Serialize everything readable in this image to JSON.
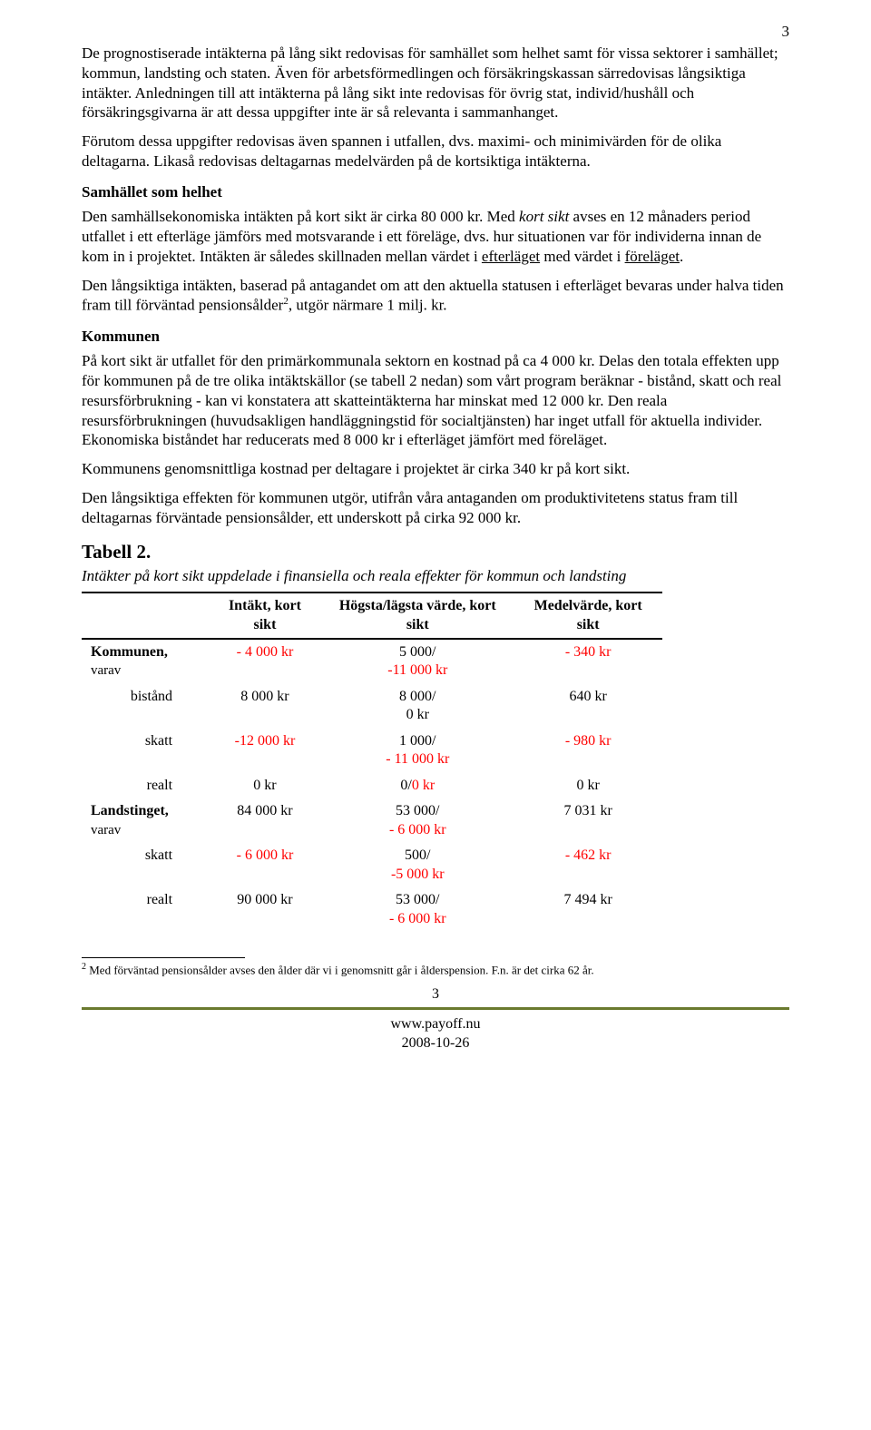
{
  "page": {
    "number_top": "3",
    "number_bottom": "3",
    "footer_url": "www.payoff.nu",
    "footer_date": "2008-10-26"
  },
  "paragraphs": {
    "p1a": "De prognostiserade intäkterna på lång sikt redovisas för samhället som helhet samt för vissa sektorer i samhället; kommun, landsting och staten. Även för arbetsförmedlingen och försäkringskassan särredovisas långsiktiga intäkter. Anledningen till att intäkterna på lång sikt inte redovisas för övrig stat, individ/hushåll och försäkringsgivarna är att dessa uppgifter inte är så relevanta i sammanhanget.",
    "p1b": "Förutom dessa uppgifter redovisas även spannen i utfallen, dvs. maximi- och minimivärden för de olika deltagarna. Likaså redovisas deltagarnas medelvärden på de kortsiktiga intäkterna.",
    "h1": "Samhället som helhet",
    "p2a_1": "Den samhällsekonomiska intäkten på kort sikt är cirka 80 000 kr. Med ",
    "p2a_italic": "kort sikt",
    "p2a_2": " avses en 12 månaders period utfallet i ett efterläge jämförs med motsvarande i ett föreläge, dvs. hur situationen var för individerna innan de kom in i projektet. Intäkten är således skillnaden mellan värdet i ",
    "p2a_u1": "efterläget",
    "p2a_3": " med värdet i ",
    "p2a_u2": "föreläget",
    "p2a_4": ".",
    "p2b_1": "Den långsiktiga intäkten, baserad på antagandet om att den aktuella statusen i efterläget bevaras under halva tiden fram till förväntad pensionsålder",
    "p2b_sup": "2",
    "p2b_2": ", utgör närmare 1 milj. kr.",
    "h2": "Kommunen",
    "p3a": "På kort sikt är utfallet för den primärkommunala sektorn en kostnad på ca 4 000 kr. Delas den totala effekten upp för kommunen på de tre olika intäktskällor (se tabell 2 nedan) som vårt program beräknar - bistånd, skatt och real resursförbrukning - kan vi konstatera att skatteintäkterna har minskat med 12 000 kr. Den reala resursförbrukningen (huvudsakligen handläggningstid för socialtjänsten) har inget utfall för aktuella individer. Ekonomiska biståndet har reducerats med 8 000 kr i efterläget jämfört med föreläget.",
    "p3b": "Kommunens genomsnittliga kostnad per deltagare i projektet är cirka 340 kr på kort sikt.",
    "p3c": "Den långsiktiga effekten för kommunen utgör, utifrån våra antaganden om produktivitetens status fram till deltagarnas förväntade pensionsålder, ett underskott på cirka 92 000 kr."
  },
  "table": {
    "title": "Tabell 2.",
    "caption": "Intäkter på kort sikt uppdelade i finansiella och reala effekter för kommun och landsting",
    "headers": {
      "c1": "",
      "c2": "Intäkt, kort sikt",
      "c3": "Högsta/lägsta värde, kort sikt",
      "c4": "Medelvärde, kort sikt"
    },
    "rows": [
      {
        "label": "Kommunen,",
        "varav": "varav",
        "c2": "- 4 000 kr",
        "c2neg": true,
        "c3a": "5 000/",
        "c3b": "-11 000 kr",
        "c3bneg": true,
        "c4": "- 340 kr",
        "c4neg": true,
        "main": true
      },
      {
        "label": "bistånd",
        "c2": "8 000 kr",
        "c2neg": false,
        "c3a": "8 000/",
        "c3b": "0 kr",
        "c3bneg": false,
        "c4": "640 kr",
        "c4neg": false,
        "main": false
      },
      {
        "label": "skatt",
        "c2": "-12 000 kr",
        "c2neg": true,
        "c3a": "1 000/",
        "c3b": "- 11 000 kr",
        "c3bneg": true,
        "c4": "- 980 kr",
        "c4neg": true,
        "main": false
      },
      {
        "label": "realt",
        "c2": "0 kr",
        "c2neg": false,
        "c3a": "0/",
        "c3b": "0 kr",
        "c3bneg": true,
        "c3inline": true,
        "c4": "0 kr",
        "c4neg": false,
        "main": false
      },
      {
        "label": "Landstinget,",
        "varav": "varav",
        "c2": "84 000 kr",
        "c2neg": false,
        "c3a": "53 000/",
        "c3b": "- 6 000 kr",
        "c3bneg": true,
        "c4": "7 031 kr",
        "c4neg": false,
        "main": true
      },
      {
        "label": "skatt",
        "c2": "- 6 000 kr",
        "c2neg": true,
        "c3a": "500/",
        "c3b": "-5 000 kr",
        "c3bneg": true,
        "c4": "- 462 kr",
        "c4neg": true,
        "main": false
      },
      {
        "label": "realt",
        "c2": "90 000 kr",
        "c2neg": false,
        "c3a": "53 000/",
        "c3b": "- 6 000 kr",
        "c3bneg": true,
        "c4": "7 494 kr",
        "c4neg": false,
        "main": false
      }
    ]
  },
  "footnote": {
    "num": "2",
    "text": " Med förväntad pensionsålder avses den ålder där vi i genomsnitt går i ålderspension. F.n. är det cirka 62 år."
  }
}
